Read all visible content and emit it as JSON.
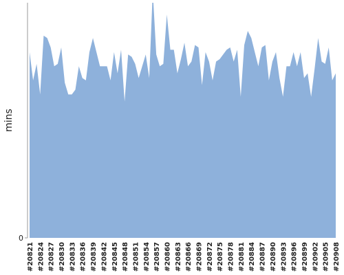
{
  "chart_data": {
    "type": "area",
    "ylabel": "mins",
    "color": "#8eb1db",
    "categories": [
      "#20821",
      null,
      null,
      "#20824",
      null,
      null,
      "#20827",
      null,
      null,
      "#20830",
      null,
      null,
      "#20833",
      null,
      null,
      "#20836",
      null,
      null,
      "#20839",
      null,
      null,
      "#20842",
      null,
      null,
      "#20845",
      null,
      null,
      "#20848",
      null,
      null,
      "#20851",
      null,
      null,
      "#20854",
      null,
      null,
      "#20857",
      null,
      null,
      "#20860",
      null,
      null,
      "#20863",
      null,
      null,
      "#20866",
      null,
      null,
      "#20869",
      null,
      null,
      "#20872",
      null,
      null,
      "#20875",
      null,
      null,
      "#20878",
      null,
      null,
      "#20881",
      null,
      null,
      "#20884",
      null,
      null,
      "#20887",
      null,
      null,
      "#20890",
      null,
      null,
      "#20893",
      null,
      null,
      "#20896",
      null,
      null,
      "#20899",
      null,
      null,
      "#20902",
      null,
      null,
      "#20905",
      null,
      null,
      "#20908"
    ],
    "values": [
      79,
      67,
      74,
      61,
      86,
      85,
      81,
      73,
      74,
      81,
      66,
      61,
      61,
      63,
      73,
      68,
      67,
      79,
      85,
      79,
      73,
      73,
      73,
      67,
      79,
      70,
      80,
      58,
      78,
      77,
      74,
      68,
      73,
      78,
      68,
      105,
      78,
      73,
      74,
      95,
      80,
      80,
      70,
      76,
      83,
      73,
      75,
      82,
      81,
      65,
      79,
      75,
      67,
      75,
      76,
      78,
      80,
      81,
      75,
      80,
      60,
      82,
      88,
      85,
      79,
      73,
      81,
      82,
      67,
      75,
      79,
      68,
      60,
      73,
      73,
      79,
      73,
      79,
      68,
      70,
      60,
      72,
      85,
      75,
      74,
      81,
      67,
      70
    ],
    "ylim": [
      0,
      100
    ],
    "yticks": [
      0
    ]
  }
}
